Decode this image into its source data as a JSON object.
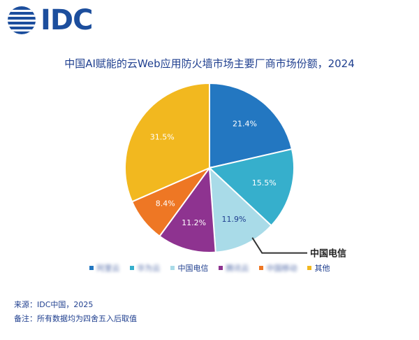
{
  "logo": {
    "text": "IDC"
  },
  "chart_data": {
    "type": "pie",
    "title": "中国AI赋能的云Web应用防火墙市场主要厂商市场份额，2024",
    "slices": [
      {
        "label": "阿里云",
        "value": 21.4,
        "value_label": "21.4%",
        "color": "#2377c1"
      },
      {
        "label": "华为云",
        "value": 15.5,
        "value_label": "15.5%",
        "color": "#36afcc"
      },
      {
        "label": "中国电信",
        "value": 11.9,
        "value_label": "11.9%",
        "color": "#a9dbe8"
      },
      {
        "label": "腾讯云",
        "value": 11.2,
        "value_label": "11.2%",
        "color": "#8e3390"
      },
      {
        "label": "中国移动",
        "value": 8.4,
        "value_label": "8.4%",
        "color": "#ee7724"
      },
      {
        "label": "其他",
        "value": 31.5,
        "value_label": "31.5%",
        "color": "#f2b81f"
      }
    ],
    "annotation": {
      "text": "中国电信",
      "slice": "中国电信"
    },
    "legend": [
      "阿里云",
      "华为云",
      "中国电信",
      "腾讯云",
      "中国移动",
      "其他"
    ],
    "masked_legend": [
      "阿里云",
      "华为云",
      "腾讯云",
      "中国移动"
    ]
  },
  "footer": {
    "source": "来源：IDC中国，2025",
    "note": "备注：所有数据均为四舍五入后取值"
  }
}
